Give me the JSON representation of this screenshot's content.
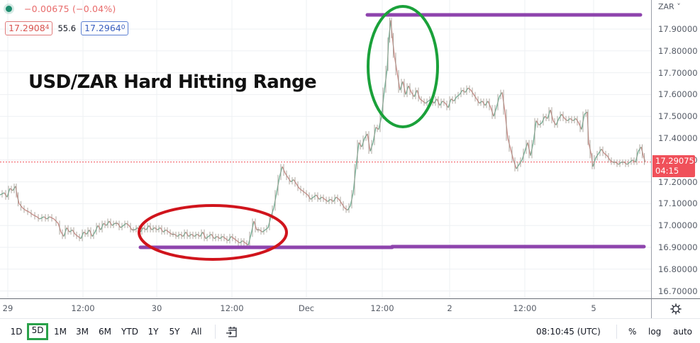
{
  "legend": {
    "change": "−0.00675 (−0.04%)",
    "sell_price": "17.2908",
    "sell_price_sup": "4",
    "spread": "55.6",
    "buy_price": "17.2964",
    "buy_price_sup": "0"
  },
  "headline": "USD/ZAR Hard Hitting Range",
  "y_axis": {
    "currency": "ZAR ˅",
    "ticks": [
      "17.90000",
      "17.80000",
      "17.70000",
      "17.60000",
      "17.50000",
      "17.40000",
      "17.30000",
      "17.20000",
      "17.10000",
      "17.00000",
      "16.90000",
      "16.80000",
      "16.70000"
    ],
    "last_price": "17.29075",
    "countdown": "04:15"
  },
  "x_axis": {
    "ticks": [
      "29",
      "12:00",
      "30",
      "12:00",
      "Dec",
      "12:00",
      "2",
      "12:00",
      "5"
    ]
  },
  "toolbar": {
    "ranges": [
      "1D",
      "5D",
      "1M",
      "3M",
      "6M",
      "YTD",
      "1Y",
      "5Y",
      "All"
    ],
    "active_range": "5D",
    "time": "08:10:45 (UTC)",
    "percent": "%",
    "log": "log",
    "auto": "auto"
  },
  "colors": {
    "up": "#26a69a",
    "down": "#ef5350",
    "line": "#8a8478",
    "resistance": "#8e44ad",
    "support": "#8e44ad",
    "low_circle": "#d0141c",
    "high_circle": "#1aa13a",
    "last_price": "#f0505a"
  },
  "chart_data": {
    "type": "line",
    "title": "USD/ZAR Hard Hitting Range",
    "symbol": "USD/ZAR",
    "xlabel": "",
    "ylabel": "ZAR",
    "ylim": [
      16.67,
      18.03
    ],
    "x_tick_labels": [
      "29",
      "12:00",
      "30",
      "12:00",
      "Dec",
      "12:00",
      "2",
      "12:00",
      "5"
    ],
    "y_tick_labels": [
      "17.90000",
      "17.80000",
      "17.70000",
      "17.60000",
      "17.50000",
      "17.40000",
      "17.30000",
      "17.20000",
      "17.10000",
      "17.00000",
      "16.90000",
      "16.80000",
      "16.70000"
    ],
    "grid": true,
    "last_price": 17.29075,
    "resistance_level": 17.96,
    "support_level": 16.905,
    "annotations": [
      {
        "type": "horizontal-line",
        "label": "resistance",
        "value": 17.96,
        "color": "#8e44ad"
      },
      {
        "type": "horizontal-line",
        "label": "support",
        "value": 16.905,
        "color": "#8e44ad"
      },
      {
        "type": "ellipse",
        "label": "range low test",
        "color": "#d0141c"
      },
      {
        "type": "ellipse",
        "label": "spike high",
        "color": "#1aa13a"
      },
      {
        "type": "text",
        "label": "USD/ZAR Hard Hitting Range"
      }
    ],
    "series": [
      {
        "name": "USD/ZAR",
        "points": [
          [
            0,
            17.14
          ],
          [
            6,
            17.15
          ],
          [
            10,
            17.13
          ],
          [
            14,
            17.17
          ],
          [
            18,
            17.16
          ],
          [
            22,
            17.18
          ],
          [
            24,
            17.14
          ],
          [
            27,
            17.1
          ],
          [
            32,
            17.08
          ],
          [
            36,
            17.07
          ],
          [
            42,
            17.06
          ],
          [
            46,
            17.05
          ],
          [
            52,
            17.04
          ],
          [
            56,
            17.03
          ],
          [
            62,
            17.04
          ],
          [
            66,
            17.03
          ],
          [
            70,
            17.04
          ],
          [
            76,
            17.03
          ],
          [
            82,
            17.01
          ],
          [
            86,
            16.97
          ],
          [
            90,
            16.95
          ],
          [
            94,
            16.99
          ],
          [
            98,
            16.97
          ],
          [
            102,
            16.98
          ],
          [
            106,
            16.96
          ],
          [
            110,
            16.95
          ],
          [
            114,
            16.94
          ],
          [
            118,
            16.97
          ],
          [
            122,
            16.96
          ],
          [
            126,
            16.98
          ],
          [
            130,
            16.95
          ],
          [
            134,
            16.97
          ],
          [
            138,
            17.0
          ],
          [
            142,
            16.98
          ],
          [
            146,
            17.01
          ],
          [
            150,
            17.0
          ],
          [
            154,
            17.02
          ],
          [
            158,
            17.0
          ],
          [
            162,
            17.01
          ],
          [
            166,
            17.01
          ],
          [
            170,
            16.99
          ],
          [
            174,
            17.0
          ],
          [
            178,
            17.01
          ],
          [
            182,
            17.0
          ],
          [
            186,
            16.98
          ],
          [
            190,
            16.98
          ],
          [
            194,
            16.99
          ],
          [
            198,
            16.97
          ],
          [
            202,
            16.99
          ],
          [
            206,
            16.98
          ],
          [
            210,
            17.0
          ],
          [
            214,
            16.98
          ],
          [
            218,
            16.99
          ],
          [
            222,
            16.98
          ],
          [
            226,
            16.99
          ],
          [
            230,
            16.97
          ],
          [
            234,
            16.98
          ],
          [
            238,
            16.97
          ],
          [
            242,
            16.96
          ],
          [
            246,
            16.96
          ],
          [
            250,
            16.95
          ],
          [
            254,
            16.96
          ],
          [
            258,
            16.95
          ],
          [
            262,
            16.97
          ],
          [
            266,
            16.95
          ],
          [
            270,
            16.96
          ],
          [
            274,
            16.95
          ],
          [
            278,
            16.96
          ],
          [
            282,
            16.95
          ],
          [
            286,
            16.97
          ],
          [
            290,
            16.94
          ],
          [
            294,
            16.95
          ],
          [
            298,
            16.96
          ],
          [
            302,
            16.94
          ],
          [
            306,
            16.95
          ],
          [
            310,
            16.94
          ],
          [
            314,
            16.95
          ],
          [
            318,
            16.94
          ],
          [
            322,
            16.93
          ],
          [
            326,
            16.95
          ],
          [
            330,
            16.94
          ],
          [
            334,
            16.93
          ],
          [
            338,
            16.92
          ],
          [
            342,
            16.93
          ],
          [
            346,
            16.92
          ],
          [
            350,
            16.91
          ],
          [
            354,
            16.96
          ],
          [
            358,
            17.02
          ],
          [
            362,
            16.98
          ],
          [
            366,
            16.98
          ],
          [
            370,
            16.97
          ],
          [
            374,
            16.98
          ],
          [
            378,
            16.99
          ],
          [
            382,
            17.04
          ],
          [
            386,
            17.08
          ],
          [
            390,
            17.15
          ],
          [
            394,
            17.22
          ],
          [
            398,
            17.27
          ],
          [
            402,
            17.24
          ],
          [
            406,
            17.22
          ],
          [
            410,
            17.2
          ],
          [
            414,
            17.21
          ],
          [
            418,
            17.19
          ],
          [
            422,
            17.17
          ],
          [
            426,
            17.16
          ],
          [
            430,
            17.15
          ],
          [
            434,
            17.14
          ],
          [
            438,
            17.12
          ],
          [
            442,
            17.13
          ],
          [
            446,
            17.14
          ],
          [
            450,
            17.12
          ],
          [
            454,
            17.13
          ],
          [
            458,
            17.12
          ],
          [
            462,
            17.11
          ],
          [
            466,
            17.12
          ],
          [
            470,
            17.11
          ],
          [
            474,
            17.13
          ],
          [
            478,
            17.12
          ],
          [
            482,
            17.1
          ],
          [
            486,
            17.08
          ],
          [
            490,
            17.07
          ],
          [
            494,
            17.09
          ],
          [
            498,
            17.15
          ],
          [
            502,
            17.27
          ],
          [
            506,
            17.38
          ],
          [
            510,
            17.36
          ],
          [
            514,
            17.4
          ],
          [
            518,
            17.42
          ],
          [
            522,
            17.34
          ],
          [
            526,
            17.38
          ],
          [
            530,
            17.45
          ],
          [
            534,
            17.44
          ],
          [
            538,
            17.5
          ],
          [
            542,
            17.62
          ],
          [
            546,
            17.72
          ],
          [
            548,
            17.85
          ],
          [
            551,
            17.94
          ],
          [
            553,
            17.87
          ],
          [
            556,
            17.78
          ],
          [
            560,
            17.7
          ],
          [
            564,
            17.62
          ],
          [
            568,
            17.66
          ],
          [
            572,
            17.6
          ],
          [
            576,
            17.64
          ],
          [
            580,
            17.61
          ],
          [
            584,
            17.59
          ],
          [
            588,
            17.62
          ],
          [
            592,
            17.58
          ],
          [
            596,
            17.57
          ],
          [
            600,
            17.56
          ],
          [
            604,
            17.57
          ],
          [
            608,
            17.58
          ],
          [
            612,
            17.56
          ],
          [
            616,
            17.58
          ],
          [
            620,
            17.55
          ],
          [
            624,
            17.57
          ],
          [
            628,
            17.56
          ],
          [
            632,
            17.54
          ],
          [
            636,
            17.58
          ],
          [
            640,
            17.57
          ],
          [
            644,
            17.59
          ],
          [
            648,
            17.6
          ],
          [
            652,
            17.62
          ],
          [
            656,
            17.61
          ],
          [
            660,
            17.63
          ],
          [
            664,
            17.62
          ],
          [
            668,
            17.6
          ],
          [
            672,
            17.58
          ],
          [
            676,
            17.56
          ],
          [
            680,
            17.57
          ],
          [
            684,
            17.55
          ],
          [
            688,
            17.57
          ],
          [
            692,
            17.54
          ],
          [
            696,
            17.5
          ],
          [
            700,
            17.54
          ],
          [
            704,
            17.59
          ],
          [
            708,
            17.61
          ],
          [
            712,
            17.52
          ],
          [
            716,
            17.4
          ],
          [
            720,
            17.35
          ],
          [
            724,
            17.3
          ],
          [
            728,
            17.26
          ],
          [
            732,
            17.28
          ],
          [
            736,
            17.3
          ],
          [
            740,
            17.34
          ],
          [
            744,
            17.38
          ],
          [
            748,
            17.32
          ],
          [
            752,
            17.38
          ],
          [
            756,
            17.48
          ],
          [
            760,
            17.46
          ],
          [
            764,
            17.47
          ],
          [
            768,
            17.5
          ],
          [
            772,
            17.49
          ],
          [
            776,
            17.53
          ],
          [
            780,
            17.48
          ],
          [
            784,
            17.46
          ],
          [
            788,
            17.49
          ],
          [
            792,
            17.51
          ],
          [
            796,
            17.49
          ],
          [
            800,
            17.48
          ],
          [
            804,
            17.49
          ],
          [
            808,
            17.48
          ],
          [
            812,
            17.49
          ],
          [
            816,
            17.47
          ],
          [
            820,
            17.44
          ],
          [
            824,
            17.51
          ],
          [
            828,
            17.52
          ],
          [
            830,
            17.38
          ],
          [
            834,
            17.32
          ],
          [
            836,
            17.27
          ],
          [
            840,
            17.31
          ],
          [
            844,
            17.33
          ],
          [
            848,
            17.35
          ],
          [
            852,
            17.33
          ],
          [
            856,
            17.32
          ],
          [
            860,
            17.3
          ],
          [
            864,
            17.29
          ],
          [
            868,
            17.29
          ],
          [
            872,
            17.28
          ],
          [
            876,
            17.29
          ],
          [
            880,
            17.29
          ],
          [
            884,
            17.28
          ],
          [
            888,
            17.29
          ],
          [
            892,
            17.3
          ],
          [
            896,
            17.29
          ],
          [
            900,
            17.34
          ],
          [
            904,
            17.36
          ],
          [
            907,
            17.32
          ],
          [
            910,
            17.29
          ]
        ]
      }
    ]
  }
}
